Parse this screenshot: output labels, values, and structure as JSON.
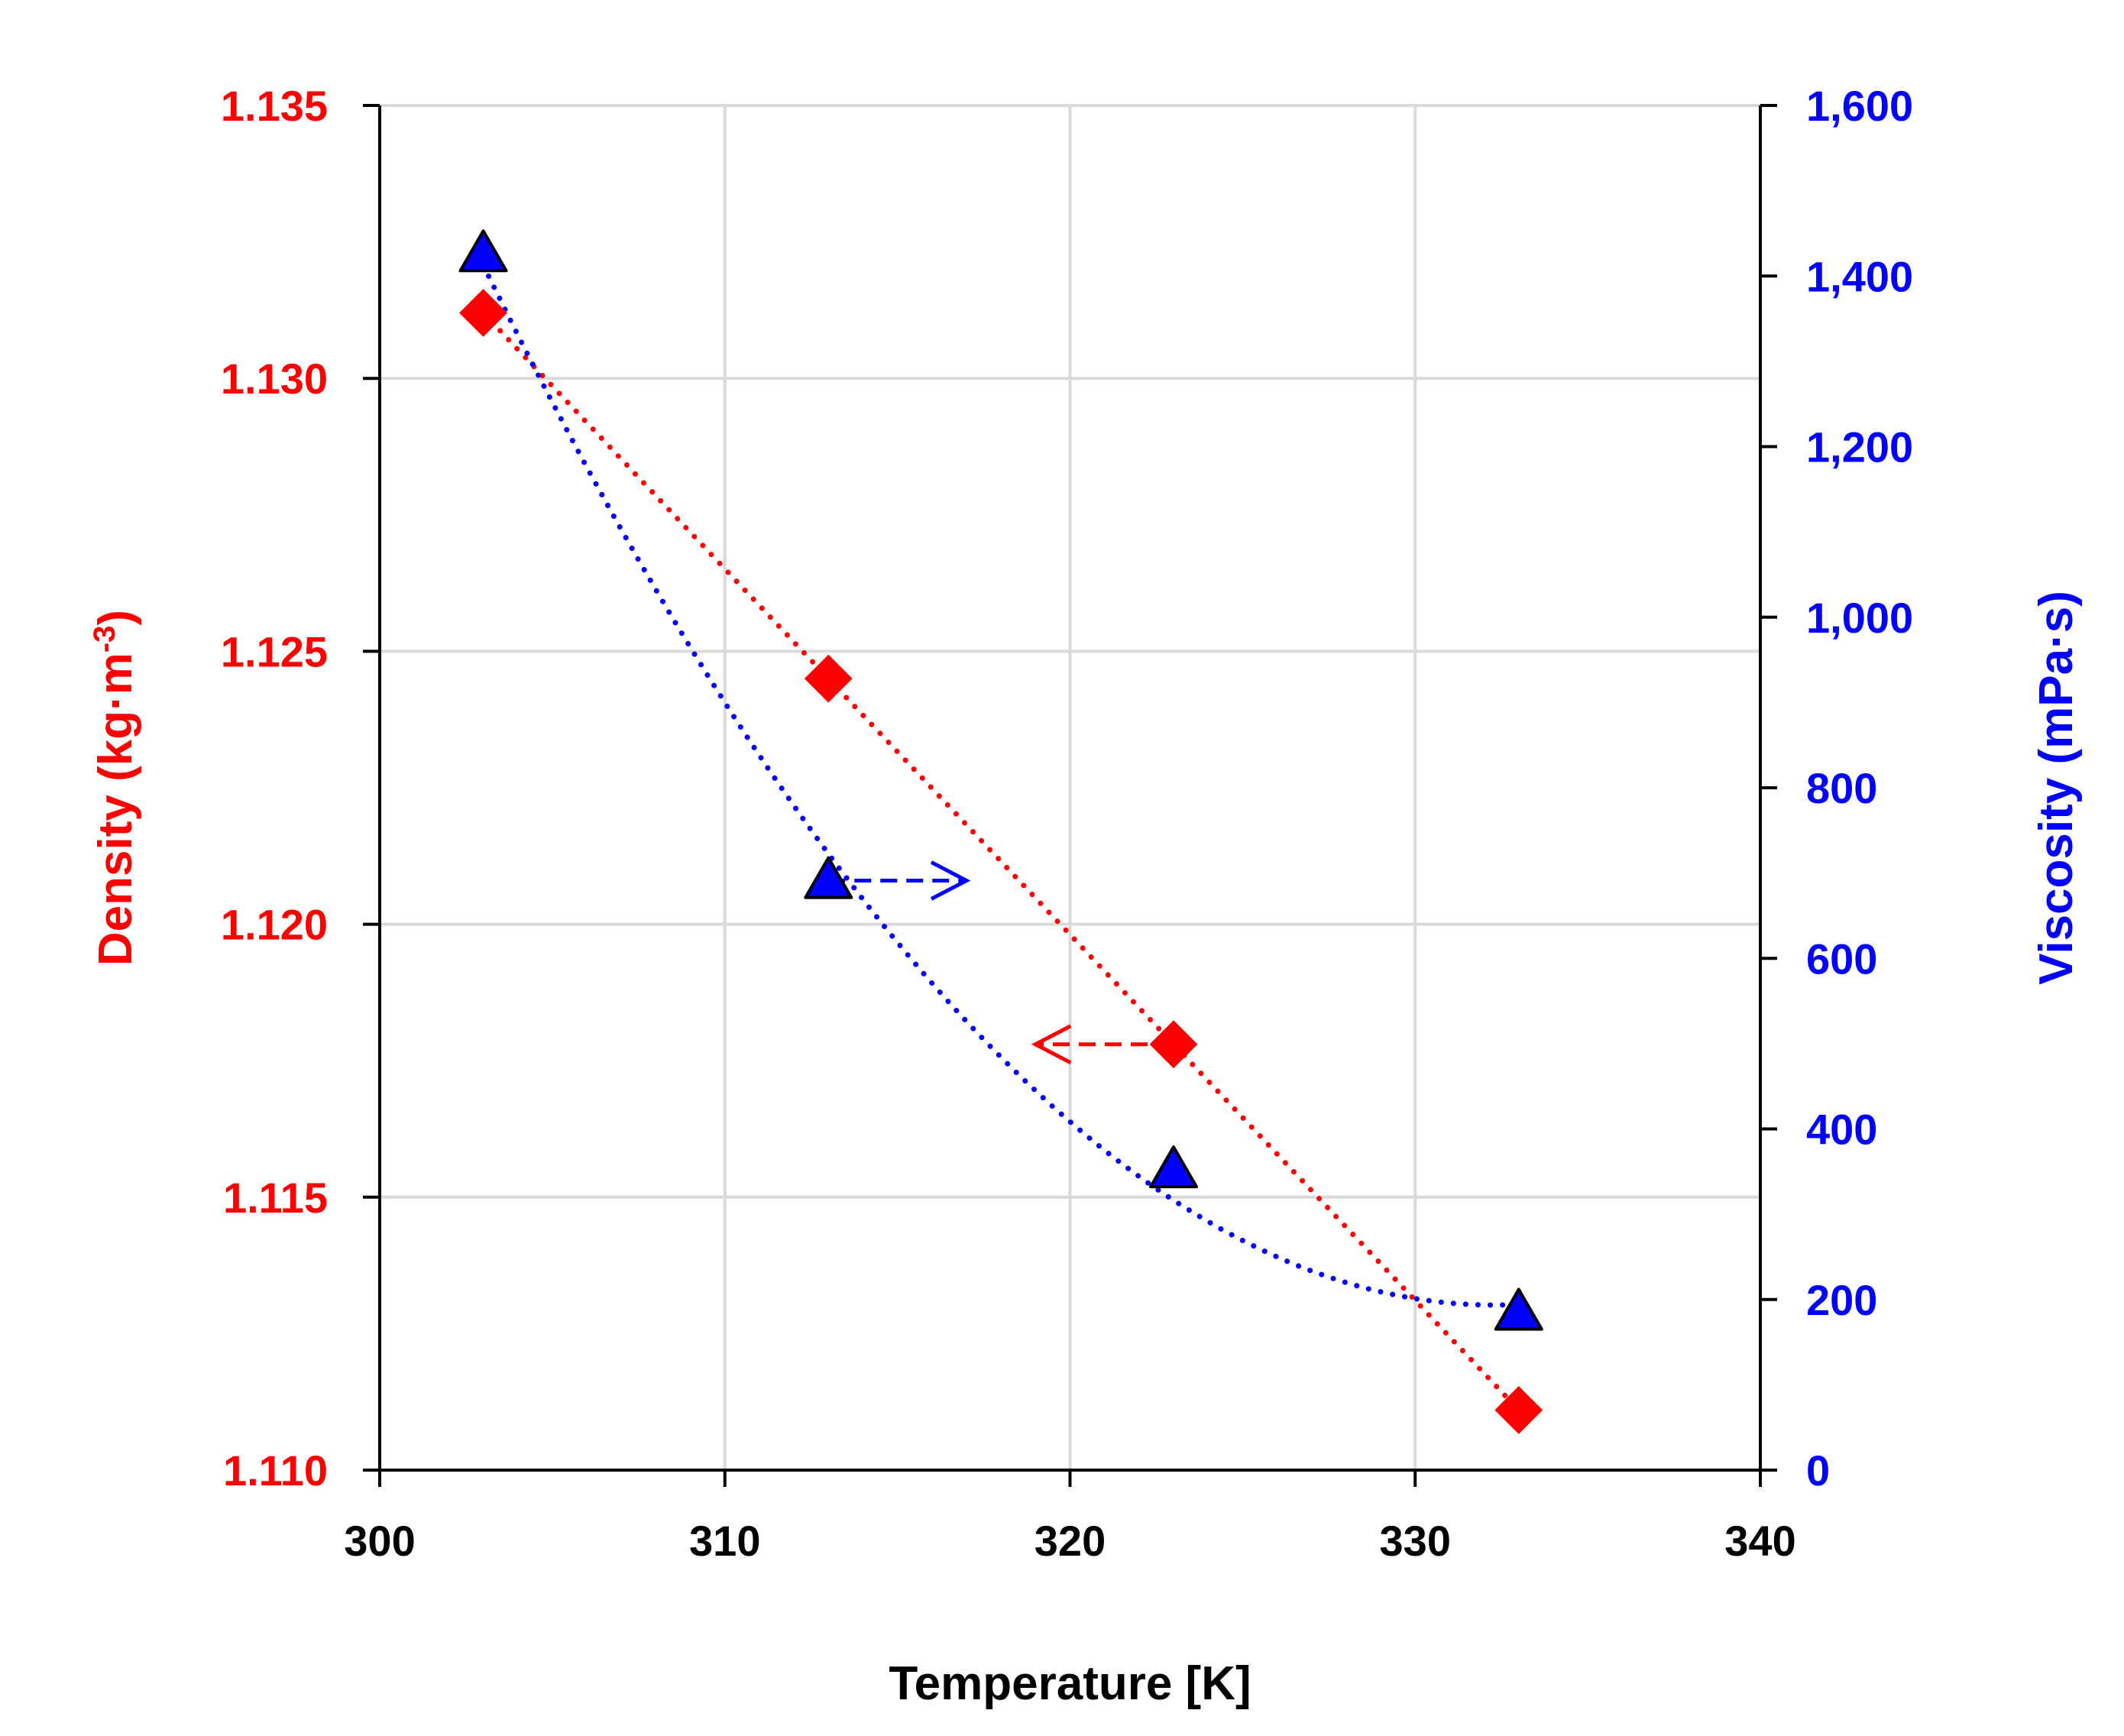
{
  "chart_data": {
    "type": "scatter",
    "xlabel": "Temperature [K]",
    "xlim": [
      300,
      340
    ],
    "xticks": [
      300,
      310,
      320,
      330,
      340
    ],
    "xtick_labels": [
      "300",
      "310",
      "320",
      "330",
      "340"
    ],
    "left_axis": {
      "label_main": "Density (kg·m",
      "label_sup": "-3",
      "label_end": ")",
      "ylim": [
        1.11,
        1.135
      ],
      "ticks": [
        1.11,
        1.115,
        1.12,
        1.125,
        1.13,
        1.135
      ],
      "tick_labels": [
        "1.110",
        "1.115",
        "1.120",
        "1.125",
        "1.130",
        "1.135"
      ],
      "color": "#ff0000"
    },
    "right_axis": {
      "label": "Viscosity (mPa·s)",
      "ylim": [
        0,
        1600
      ],
      "ticks": [
        0,
        200,
        400,
        600,
        800,
        1000,
        1200,
        1400,
        1600
      ],
      "tick_labels": [
        "0",
        "200",
        "400",
        "600",
        "800",
        "1,000",
        "1,200",
        "1,400",
        "1,600"
      ],
      "color": "#0000ff"
    },
    "series": [
      {
        "name": "Density",
        "axis": "left",
        "marker": "diamond",
        "color": "#ff0000",
        "x": [
          303,
          313,
          323,
          333
        ],
        "y": [
          1.1312,
          1.1245,
          1.1178,
          1.1111
        ],
        "trendline": "dotted"
      },
      {
        "name": "Viscosity",
        "axis": "right",
        "marker": "triangle",
        "color": "#0000ff",
        "x": [
          303,
          313,
          323,
          333
        ],
        "y": [
          1424,
          689,
          350,
          183
        ],
        "trendline": "dotted"
      }
    ],
    "annotations": [
      {
        "type": "arrow",
        "color": "#0000ff",
        "direction": "right",
        "from": [
          313,
          1.1208
        ],
        "to": [
          317,
          1.1208
        ],
        "note": "points to right axis"
      },
      {
        "type": "arrow",
        "color": "#ff0000",
        "direction": "left",
        "from": [
          323,
          1.1178
        ],
        "to": [
          319,
          1.1178
        ],
        "note": "points to left axis"
      }
    ],
    "grid": true
  }
}
